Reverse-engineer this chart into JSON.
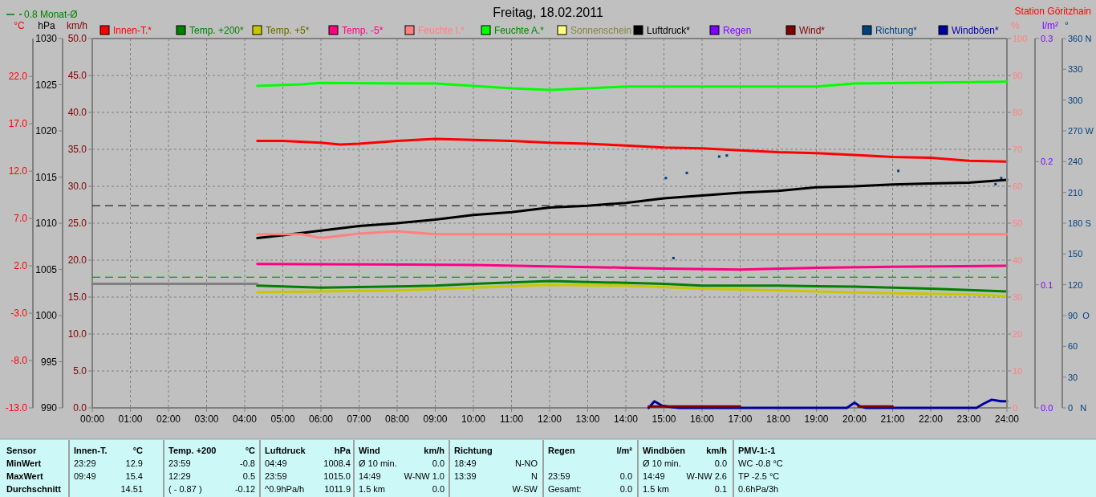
{
  "chart_data": [
    {
      "type": "line",
      "title": "Freitag, 18.02.2011",
      "ylabel": "°C",
      "y2label": "hPa",
      "y3label": "km/h",
      "xlim": [
        0,
        24
      ],
      "xticks": [
        {
          "value": 0,
          "label": "00:00"
        },
        {
          "value": 1,
          "label": "01:00"
        },
        {
          "value": 2,
          "label": "02:00"
        },
        {
          "value": 3,
          "label": "03:00"
        },
        {
          "value": 4,
          "label": "04:00"
        },
        {
          "value": 5,
          "label": "05:00"
        },
        {
          "value": 6,
          "label": "06:00"
        },
        {
          "value": 7,
          "label": "07:00"
        },
        {
          "value": 8,
          "label": "08:00"
        },
        {
          "value": 9,
          "label": "09:00"
        },
        {
          "value": 10,
          "label": "10:00"
        },
        {
          "value": 11,
          "label": "11:00"
        },
        {
          "value": 12,
          "label": "12:00"
        },
        {
          "value": 13,
          "label": "13:00"
        },
        {
          "value": 14,
          "label": "14:00"
        },
        {
          "value": 15,
          "label": "15:00"
        },
        {
          "value": 16,
          "label": "16:00"
        },
        {
          "value": 17,
          "label": "17:00"
        },
        {
          "value": 18,
          "label": "18:00"
        },
        {
          "value": 19,
          "label": "19:00"
        },
        {
          "value": 20,
          "label": "20:00"
        },
        {
          "value": 21,
          "label": "21:00"
        },
        {
          "value": 22,
          "label": "22:00"
        },
        {
          "value": 23,
          "label": "23:00"
        },
        {
          "value": 24,
          "label": "24:00"
        }
      ],
      "ylim": [
        -13,
        26
      ],
      "yticks": [
        {
          "value": -13,
          "label": "-13.0"
        },
        {
          "value": -8,
          "label": "-8.0"
        },
        {
          "value": -3,
          "label": "-3.0"
        },
        {
          "value": 2,
          "label": "2.0"
        },
        {
          "value": 7,
          "label": "7.0"
        },
        {
          "value": 12,
          "label": "12.0"
        },
        {
          "value": 17,
          "label": "17.0"
        },
        {
          "value": 22,
          "label": "22.0"
        }
      ],
      "y2lim": [
        990,
        1030
      ],
      "y2ticks": [
        990,
        995,
        1000,
        1005,
        1010,
        1015,
        1020,
        1025,
        1030
      ],
      "y3lim": [
        0,
        50
      ],
      "y3ticks": [
        {
          "value": 0,
          "label": "0.0"
        },
        {
          "value": 5,
          "label": "5.0"
        },
        {
          "value": 10,
          "label": "10.0"
        },
        {
          "value": 15,
          "label": "15.0"
        },
        {
          "value": 20,
          "label": "20.0"
        },
        {
          "value": 25,
          "label": "25.0"
        },
        {
          "value": 30,
          "label": "30.0"
        },
        {
          "value": 35,
          "label": "35.0"
        },
        {
          "value": 40,
          "label": "40.0"
        },
        {
          "value": 45,
          "label": "45.0"
        },
        {
          "value": 50,
          "label": "50.0"
        }
      ],
      "grid": true,
      "legend": "top",
      "line_style": "solid",
      "series": [
        {
          "name": "Innen-T.*",
          "color": "#ff0000",
          "x": [
            4.33,
            5,
            6,
            6.5,
            7,
            8,
            9,
            10,
            11,
            12,
            13,
            14,
            15,
            16,
            17,
            18,
            19,
            20,
            21,
            22,
            23,
            24
          ],
          "values": [
            15.2,
            15.2,
            15.0,
            14.8,
            14.9,
            15.2,
            15.4,
            15.3,
            15.2,
            15.0,
            14.9,
            14.7,
            14.5,
            14.4,
            14.2,
            14.0,
            13.9,
            13.7,
            13.5,
            13.4,
            13.1,
            13.0
          ]
        },
        {
          "name": "Temp. +200*",
          "color": "#008000",
          "x": [
            4.33,
            6,
            9,
            10,
            12,
            13,
            15,
            16,
            18,
            20,
            22,
            24
          ],
          "values": [
            -0.1,
            -0.3,
            -0.1,
            0.1,
            0.4,
            0.3,
            0.1,
            -0.1,
            -0.1,
            -0.2,
            -0.4,
            -0.7
          ]
        },
        {
          "name": "Temp. +5*",
          "color": "#c8c800",
          "x": [
            4.33,
            8,
            10,
            12,
            14,
            16,
            18,
            21,
            23,
            24
          ],
          "values": [
            -0.8,
            -0.6,
            -0.3,
            0.0,
            -0.1,
            -0.4,
            -0.6,
            -0.9,
            -1.0,
            -1.2
          ]
        },
        {
          "name": "Temp. -5*",
          "color": "#ff0080",
          "x": [
            4.33,
            10,
            14,
            15,
            17,
            19,
            21,
            24
          ],
          "values": [
            2.2,
            2.1,
            1.8,
            1.7,
            1.6,
            1.8,
            1.9,
            2.0
          ]
        },
        {
          "name": "Luftdruck*",
          "color": "#000000",
          "axis": "y2",
          "x": [
            4.33,
            5,
            6,
            7,
            8,
            9,
            10,
            11,
            12,
            13,
            14,
            15,
            16,
            17,
            18,
            19,
            20,
            21,
            22,
            23,
            24
          ],
          "values": [
            1008.4,
            1008.7,
            1009.2,
            1009.7,
            1010.0,
            1010.4,
            1010.9,
            1011.2,
            1011.7,
            1011.9,
            1012.2,
            1012.7,
            1013.0,
            1013.3,
            1013.5,
            1013.9,
            1014.0,
            1014.2,
            1014.3,
            1014.4,
            1014.7
          ]
        },
        {
          "name": "Windböen*",
          "color": "#0000a0",
          "axis": "y3",
          "x": [
            14.6,
            14.75,
            14.95,
            15.2,
            15.4,
            19.8,
            20.0,
            20.15,
            20.3,
            23.2,
            23.4,
            23.6,
            23.85,
            24
          ],
          "values": [
            0,
            0.9,
            0.3,
            0.1,
            0,
            0,
            0.7,
            0.2,
            0,
            0,
            0.6,
            1.1,
            0.9,
            0.9
          ]
        },
        {
          "name": "Wind*",
          "color": "#800000",
          "axis": "y3",
          "x": [
            14.6,
            15,
            16,
            17,
            17.1,
            20.1,
            21
          ],
          "values": [
            0.2,
            0.2,
            0.2,
            0.2,
            null,
            0.2,
            0.2
          ]
        },
        {
          "color": "#808080",
          "x": [
            0,
            4.33
          ],
          "values": [
            0.1,
            0.1
          ]
        }
      ],
      "ref_lines": [
        {
          "axis": "y",
          "value": 0.8,
          "label": "0.8 Monat-Ø",
          "color": "#008000",
          "line_style": "dashed"
        },
        {
          "axis": "y2",
          "value": 1011.9,
          "color": "#000000",
          "line_style": "dashed"
        }
      ],
      "annotations": [
        "Station Göritzhain",
        "Sensor",
        "MinWert",
        "MaxWert",
        "Durchschnitt",
        "Innen-T.",
        "°C",
        "23:29",
        "12.9",
        "09:49",
        "15.4",
        "14.51",
        "Temp. +200",
        "°C",
        "23:59",
        "-0.8",
        "12:29",
        "0.5",
        "( - 0.87 )",
        "-0.12",
        "Luftdruck",
        "hPa",
        "04:49",
        "1008.4",
        "23:59",
        "1015.0",
        "^0.9hPa/h",
        "1011.9",
        "Wind",
        "km/h",
        "Ø 10 min.",
        "0.0",
        "14:49",
        "W-NW 1.0",
        "1.5 km",
        "0.0",
        "Richtung",
        "18:49",
        "N-NO",
        "13:39",
        "N",
        "W-SW",
        "Regen",
        "l/m²",
        "23:59",
        "0.0",
        "Gesamt:",
        "0.0",
        "Windböen",
        "km/h",
        "Ø 10 min.",
        "0.0",
        "14:49",
        "W-NW 2.6",
        "1.5 km",
        "0.1",
        "PMV-1:-1",
        "WC -0.8 °C",
        "TP -2.5 °C",
        "0.6hPa/3h"
      ]
    },
    {
      "type": "line",
      "ylabel": "%",
      "y2label": "l/m²",
      "y3label": "°",
      "xlim": [
        0,
        24
      ],
      "ylim": [
        0,
        100
      ],
      "yticks": [
        0,
        10,
        20,
        30,
        40,
        50,
        60,
        70,
        80,
        90,
        100
      ],
      "y2lim": [
        0,
        0.3
      ],
      "y2ticks": [
        {
          "value": 0,
          "label": "0.0"
        },
        0.1,
        0.2,
        0.3
      ],
      "y3lim": [
        0,
        360
      ],
      "y3ticks": [
        {
          "value": 0,
          "label": "0   N"
        },
        30,
        60,
        {
          "value": 90,
          "label": "90  O"
        },
        120,
        150,
        {
          "value": 180,
          "label": "180 S"
        },
        210,
        240,
        {
          "value": 270,
          "label": "270 W"
        },
        300,
        330,
        {
          "value": 360,
          "label": "360 N"
        }
      ],
      "legend": "top",
      "line_style": "solid",
      "series": [
        {
          "name": "Feuchte I.*",
          "color": "#ff8080",
          "x": [
            4.33,
            5.5,
            6,
            6.5,
            7,
            8,
            9,
            24
          ],
          "values": [
            47,
            47,
            46,
            46.6,
            47.2,
            47.8,
            47,
            47
          ]
        },
        {
          "name": "Feuchte A.*",
          "color": "#00ff00",
          "x": [
            4.33,
            5.5,
            6,
            9,
            11,
            12,
            13,
            14,
            19,
            20,
            24
          ],
          "values": [
            87.2,
            87.6,
            88,
            87.8,
            86.5,
            86.1,
            86.5,
            87,
            87,
            87.8,
            88.3
          ]
        },
        {
          "name": "Sonnenschein",
          "color": "#ffff80"
        },
        {
          "name": "Regen",
          "color": "#8000ff",
          "axis": "y2"
        },
        {
          "name": "Richtung*",
          "color": "#004080",
          "axis": "y3",
          "type": "scatter",
          "marker": "square",
          "x": [
            15.05,
            15.25,
            15.6,
            16.45,
            16.65,
            21.15,
            23.7,
            23.85
          ],
          "values": [
            224,
            146,
            229,
            245,
            246,
            231,
            218,
            224
          ]
        }
      ]
    }
  ]
}
